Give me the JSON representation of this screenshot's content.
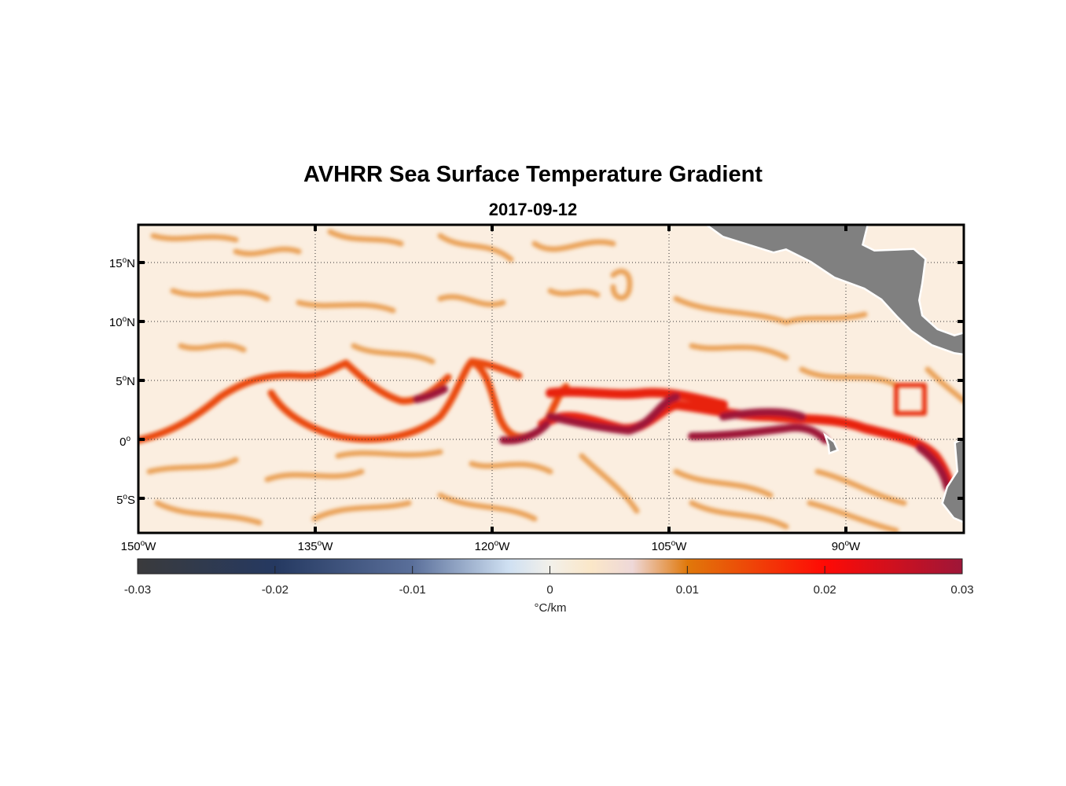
{
  "title": "AVHRR Sea Surface Temperature Gradient",
  "subtitle": "2017-09-12",
  "chart_data": {
    "type": "heatmap",
    "title": "AVHRR Sea Surface Temperature Gradient",
    "subtitle": "2017-09-12",
    "lon_range": [
      -150,
      -80
    ],
    "lat_range": [
      -8,
      18
    ],
    "x_ticks": [
      {
        "value": -150,
        "label": "150",
        "sup": "o",
        "suffix": "W"
      },
      {
        "value": -135,
        "label": "135",
        "sup": "o",
        "suffix": "W"
      },
      {
        "value": -120,
        "label": "120",
        "sup": "o",
        "suffix": "W"
      },
      {
        "value": -105,
        "label": "105",
        "sup": "o",
        "suffix": "W"
      },
      {
        "value": -90,
        "label": "90",
        "sup": "o",
        "suffix": "W"
      }
    ],
    "y_ticks": [
      {
        "value": 15,
        "label": "15",
        "sup": "o",
        "suffix": "N"
      },
      {
        "value": 10,
        "label": "10",
        "sup": "o",
        "suffix": "N"
      },
      {
        "value": 5,
        "label": "5",
        "sup": "o",
        "suffix": "N"
      },
      {
        "value": 0,
        "label": "0",
        "sup": "o",
        "suffix": ""
      },
      {
        "value": -5,
        "label": "5",
        "sup": "o",
        "suffix": "S"
      }
    ],
    "grid": true,
    "colorbar": {
      "range": [
        -0.03,
        0.03
      ],
      "ticks": [
        -0.03,
        -0.02,
        -0.01,
        0,
        0.01,
        0.02,
        0.03
      ],
      "tick_labels": [
        "-0.03",
        "-0.02",
        "-0.01",
        "0",
        "0.01",
        "0.02",
        "0.03"
      ],
      "label": "°C/km",
      "placement": "bottom",
      "colors": [
        "#3a3a3c",
        "#253961",
        "#5a6f9a",
        "#cfe0f2",
        "#f2f0ea",
        "#fbe7c8",
        "#e0780a",
        "#ff0a05",
        "#9e1638"
      ]
    },
    "land_color": "#808080"
  }
}
